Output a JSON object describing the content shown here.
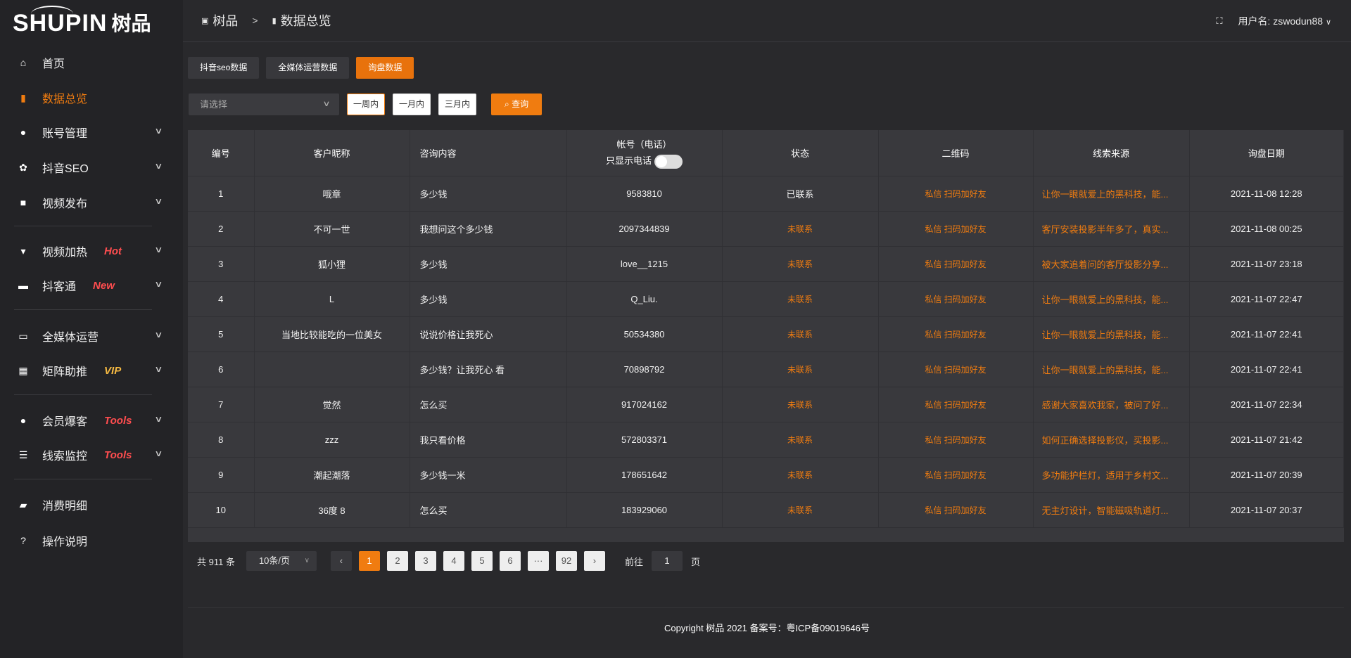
{
  "logo": {
    "en": "SHUPIN",
    "cn": "树品"
  },
  "sidebar": {
    "items": [
      {
        "label": "首页",
        "icon": "home-icon",
        "glyph": "⌂"
      },
      {
        "label": "数据总览",
        "icon": "bar-chart-icon",
        "glyph": "▮",
        "active": true
      },
      {
        "label": "账号管理",
        "icon": "user-icon",
        "glyph": "●"
      },
      {
        "label": "抖音SEO",
        "icon": "gear-icon",
        "glyph": "✿"
      },
      {
        "label": "视频发布",
        "icon": "camera-icon",
        "glyph": "■"
      },
      {
        "label": "视频加热",
        "icon": "pin-icon",
        "glyph": "▾",
        "badge": "Hot",
        "badge_color": "#ff4d4f"
      },
      {
        "label": "抖客通",
        "icon": "chat-icon",
        "glyph": "▬",
        "badge": "New",
        "badge_color": "#ff4d4f"
      },
      {
        "label": "全媒体运营",
        "icon": "monitor-icon",
        "glyph": "▭"
      },
      {
        "label": "矩阵助推",
        "icon": "grid-icon",
        "glyph": "▦",
        "badge": "VIP",
        "badge_color": "#f5b942"
      },
      {
        "label": "会员爆客",
        "icon": "user-icon",
        "glyph": "●",
        "badge": "Tools",
        "badge_color": "#ff4d4f"
      },
      {
        "label": "线索监控",
        "icon": "sliders-icon",
        "glyph": "☰",
        "badge": "Tools",
        "badge_color": "#ff4d4f"
      },
      {
        "label": "消费明细",
        "icon": "wallet-icon",
        "glyph": "▰"
      },
      {
        "label": "操作说明",
        "icon": "help-icon",
        "glyph": "?"
      }
    ]
  },
  "header": {
    "breadcrumb": [
      "树品",
      "数据总览"
    ],
    "separator": ">",
    "user_label": "用户名: zswodun88"
  },
  "tabs": [
    {
      "label": "抖音seo数据"
    },
    {
      "label": "全媒体运营数据"
    },
    {
      "label": "询盘数据",
      "active": true
    }
  ],
  "filters": {
    "select_placeholder": "请选择",
    "ranges": [
      "一周内",
      "一月内",
      "三月内"
    ],
    "active_range": "一周内",
    "search_label": "查询"
  },
  "table": {
    "headers": [
      "编号",
      "客户昵称",
      "咨询内容",
      "帐号（电话）",
      "状态",
      "二维码",
      "线索来源",
      "询盘日期"
    ],
    "phone_toggle_label": "只显示电话",
    "phone_toggle_on": false,
    "qr_text": "私信 扫码加好友",
    "rows": [
      [
        "1",
        "哦章",
        "多少钱",
        "9583810",
        "已联系",
        "私信 扫码加好友",
        "让你一眼就爱上的黑科技，能...",
        "2021-11-08 12:28"
      ],
      [
        "2",
        "不可一世",
        "我想问这个多少钱",
        "2097344839",
        "未联系",
        "私信 扫码加好友",
        "客厅安装投影半年多了，真实...",
        "2021-11-08 00:25"
      ],
      [
        "3",
        "狐小狸",
        "多少钱",
        "love__1215",
        "未联系",
        "私信 扫码加好友",
        "被大家追着问的客厅投影分享...",
        "2021-11-07 23:18"
      ],
      [
        "4",
        "L",
        "多少钱",
        "Q_Liu.",
        "未联系",
        "私信 扫码加好友",
        "让你一眼就爱上的黑科技，能...",
        "2021-11-07 22:47"
      ],
      [
        "5",
        "当地比较能吃的一位美女",
        "说说价格让我死心",
        "50534380",
        "未联系",
        "私信 扫码加好友",
        "让你一眼就爱上的黑科技，能...",
        "2021-11-07 22:41"
      ],
      [
        "6",
        "",
        "多少钱？让我死心 看",
        "70898792",
        "未联系",
        "私信 扫码加好友",
        "让你一眼就爱上的黑科技，能...",
        "2021-11-07 22:41"
      ],
      [
        "7",
        "觉然",
        "怎么买",
        "917024162",
        "未联系",
        "私信 扫码加好友",
        "感谢大家喜欢我家，被问了好...",
        "2021-11-07 22:34"
      ],
      [
        "8",
        "zzz",
        "我只看价格",
        "572803371",
        "未联系",
        "私信 扫码加好友",
        "如何正确选择投影仪，买投影...",
        "2021-11-07 21:42"
      ],
      [
        "9",
        "潮起潮落",
        "多少钱一米",
        "178651642",
        "未联系",
        "私信 扫码加好友",
        "多功能护栏灯，适用于乡村文...",
        "2021-11-07 20:39"
      ],
      [
        "10",
        "36度 8",
        "怎么买",
        "183929060",
        "未联系",
        "私信 扫码加好友",
        "无主灯设计，智能磁吸轨道灯...",
        "2021-11-07 20:37"
      ]
    ]
  },
  "pagination": {
    "total": "共 911 条",
    "page_size": "10条/页",
    "pages": [
      "1",
      "2",
      "3",
      "4",
      "5",
      "6",
      "···",
      "92"
    ],
    "current": "1",
    "goto_label": "前往",
    "goto_value": "1",
    "page_suffix": "页"
  },
  "footer": {
    "copyright": "Copyright 树品 2021 备案号：粤ICP备09019646号"
  },
  "colors": {
    "accent": "#f07c10",
    "bg": "#29292c",
    "sidebar": "#232326"
  }
}
